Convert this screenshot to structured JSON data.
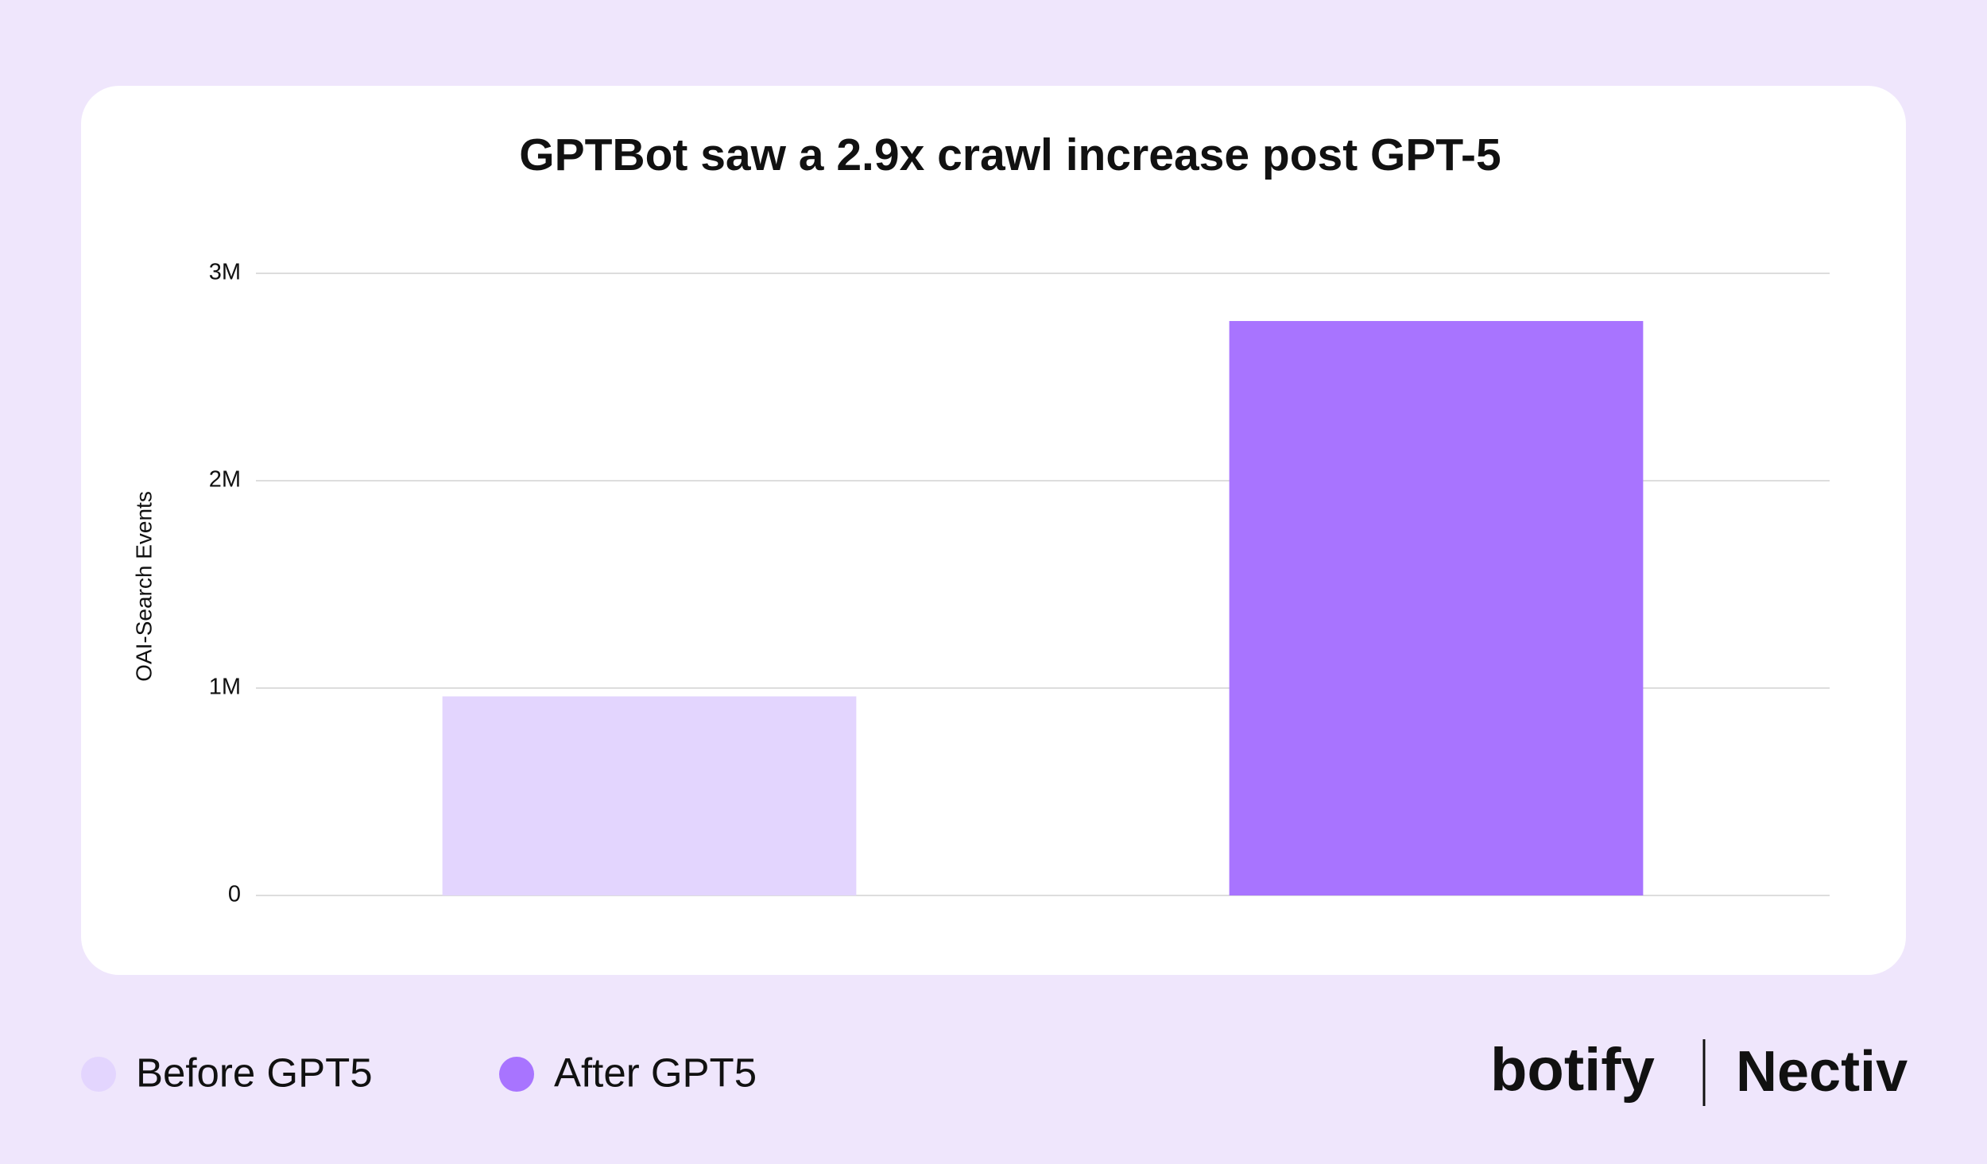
{
  "chart_data": {
    "type": "bar",
    "title": "GPTBot saw a 2.9x crawl increase post GPT-5",
    "y_label": "OAI-Search Events",
    "categories": [
      null,
      null
    ],
    "series": [
      {
        "name": "Before GPT5",
        "color": "#e3d5fe",
        "values": [
          960000,
          null
        ]
      },
      {
        "name": "After GPT5",
        "color": "#a874ff",
        "values": [
          null,
          2770000
        ]
      }
    ],
    "ylim": [
      0,
      3000000
    ],
    "yticks": [
      0,
      {
        "value": 1000000,
        "label": "1M"
      },
      {
        "value": 2000000,
        "label": "2M"
      },
      {
        "value": 3000000,
        "label": "3M"
      }
    ],
    "grid": true
  },
  "footer": {
    "logos": [
      "botify",
      "Nectiv"
    ]
  }
}
